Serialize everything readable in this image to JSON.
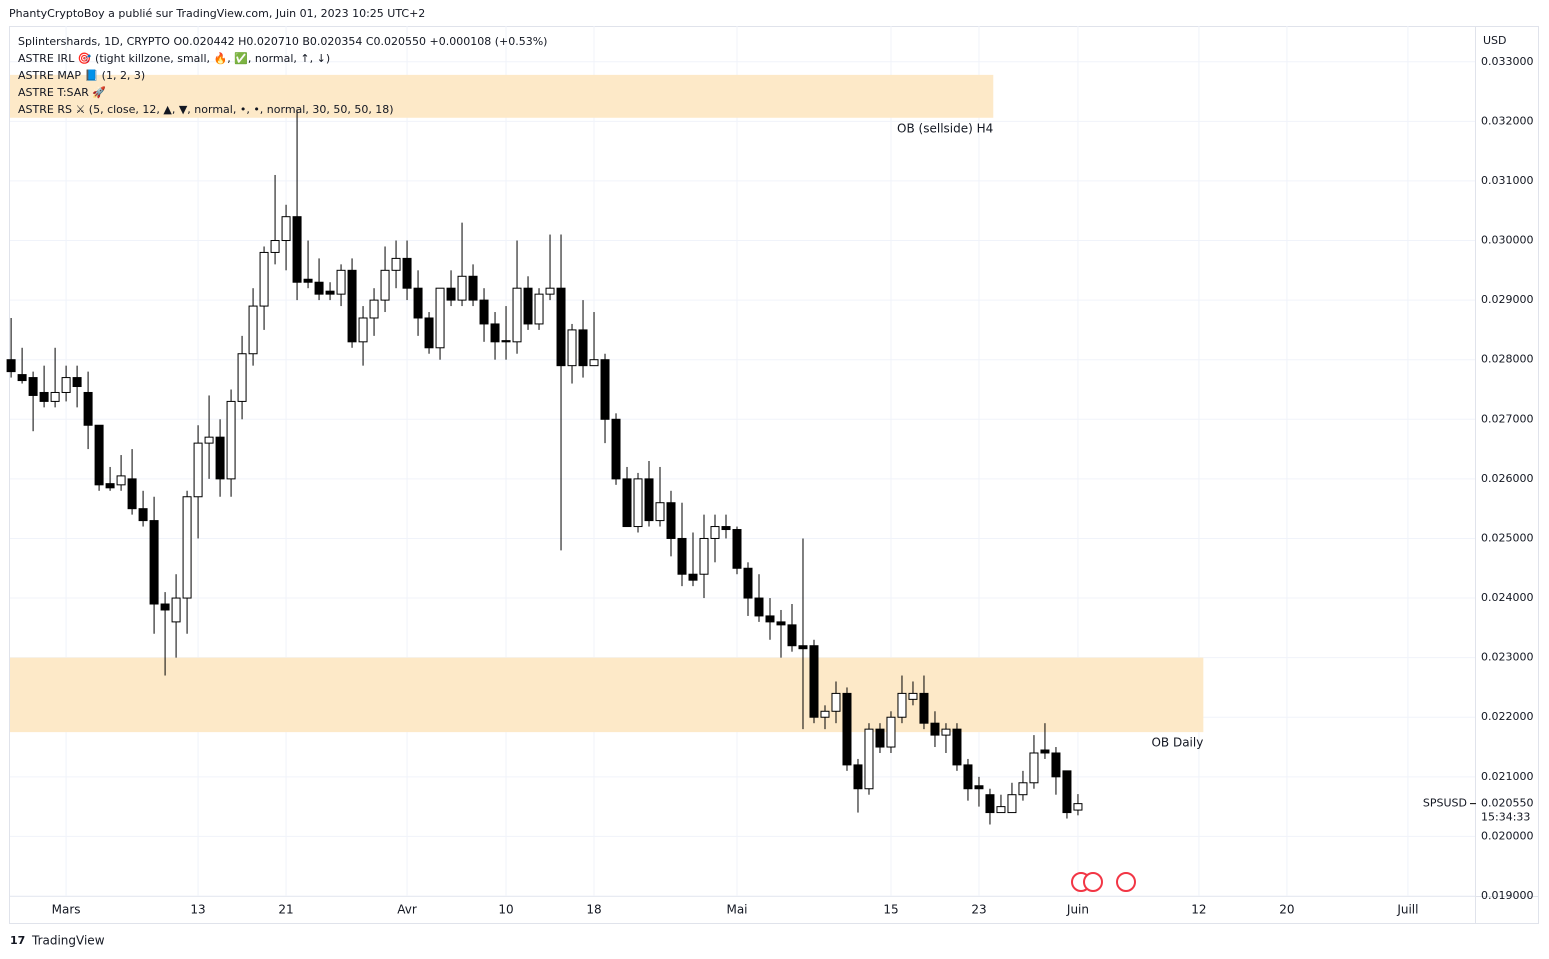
{
  "header": {
    "published": "PhantyCryptoBoy a publié sur TradingView.com, Juin 01, 2023 10:25 UTC+2",
    "legend": [
      "Splintershards, 1D, CRYPTO  O0.020442 H0.020710 B0.020354 C0.020550 +0.000108 (+0.53%)",
      "ASTRE IRL 🎯  (tight killzone, small, 🔥, ✅, normal, ↑, ↓)",
      "ASTRE MAP 📘  (1, 2, 3)",
      "ASTRE T:SAR 🚀",
      "ASTRE RS ⚔  (5, close, 12, ▲, ▼, normal, •, •, normal, 30, 50, 50, 18)"
    ]
  },
  "footer": "TradingView",
  "chart_data": {
    "type": "candlestick",
    "currency": "USD",
    "symbol": "SPSUSD",
    "countdown": "15:34:33",
    "last_price": {
      "value": 0.02055,
      "label": "0.020550"
    },
    "xlim": [
      -5.1,
      128.1
    ],
    "ylim": [
      0.019,
      0.0336
    ],
    "xticks": [
      {
        "value": 0,
        "label": "Mars"
      },
      {
        "value": 12,
        "label": "13"
      },
      {
        "value": 20,
        "label": "21"
      },
      {
        "value": 31,
        "label": "Avr"
      },
      {
        "value": 40,
        "label": "10"
      },
      {
        "value": 48,
        "label": "18"
      },
      {
        "value": 61,
        "label": "Mai"
      },
      {
        "value": 75,
        "label": "15"
      },
      {
        "value": 83,
        "label": "23"
      },
      {
        "value": 92,
        "label": "Juin"
      },
      {
        "value": 103,
        "label": "12"
      },
      {
        "value": 111,
        "label": "20"
      },
      {
        "value": 122,
        "label": "Juill"
      }
    ],
    "yticks": [
      {
        "value": 0.019,
        "label": "0.019000"
      },
      {
        "value": 0.02,
        "label": "0.020000"
      },
      {
        "value": 0.021,
        "label": "0.021000"
      },
      {
        "value": 0.022,
        "label": "0.022000"
      },
      {
        "value": 0.023,
        "label": "0.023000"
      },
      {
        "value": 0.024,
        "label": "0.024000"
      },
      {
        "value": 0.025,
        "label": "0.025000"
      },
      {
        "value": 0.026,
        "label": "0.026000"
      },
      {
        "value": 0.027,
        "label": "0.027000"
      },
      {
        "value": 0.028,
        "label": "0.028000"
      },
      {
        "value": 0.029,
        "label": "0.029000"
      },
      {
        "value": 0.03,
        "label": "0.030000"
      },
      {
        "value": 0.031,
        "label": "0.031000"
      },
      {
        "value": 0.032,
        "label": "0.032000"
      },
      {
        "value": 0.033,
        "label": "0.033000"
      }
    ],
    "grid": true,
    "up_color": "#ffffff",
    "down_color": "#000000",
    "zone_color": "#fde9c8",
    "zones": [
      {
        "label": "OB (sellside) H4",
        "top": 0.03278,
        "bottom": 0.03206,
        "x_end": 84.3
      },
      {
        "label": "OB Daily",
        "top": 0.023,
        "bottom": 0.02175,
        "x_end": 103.4
      }
    ],
    "candles": {
      "x": [
        -5,
        -4,
        -3,
        -2,
        -1,
        0,
        1,
        2,
        3,
        4,
        5,
        6,
        7,
        8,
        9,
        10,
        11,
        12,
        13,
        14,
        15,
        16,
        17,
        18,
        19,
        20,
        21,
        22,
        23,
        24,
        25,
        26,
        27,
        28,
        29,
        30,
        31,
        32,
        33,
        34,
        35,
        36,
        37,
        38,
        39,
        40,
        41,
        42,
        43,
        44,
        45,
        46,
        47,
        48,
        49,
        50,
        51,
        52,
        53,
        54,
        55,
        56,
        57,
        58,
        59,
        60,
        61,
        62,
        63,
        64,
        65,
        66,
        67,
        68,
        69,
        70,
        71,
        72,
        73,
        74,
        75,
        76,
        77,
        78,
        79,
        80,
        81,
        82,
        83,
        84,
        85,
        86,
        87,
        88,
        89,
        90,
        91,
        92
      ],
      "open": [
        0.028,
        0.02775,
        0.0277,
        0.02745,
        0.0273,
        0.02745,
        0.0277,
        0.02745,
        0.0269,
        0.02592,
        0.0259,
        0.026,
        0.0255,
        0.0253,
        0.0239,
        0.0236,
        0.024,
        0.0257,
        0.0266,
        0.0267,
        0.026,
        0.0273,
        0.0281,
        0.0289,
        0.0298,
        0.03,
        0.0304,
        0.02935,
        0.0293,
        0.02915,
        0.0291,
        0.0295,
        0.0283,
        0.0287,
        0.029,
        0.0295,
        0.0297,
        0.0292,
        0.0287,
        0.0282,
        0.0292,
        0.029,
        0.0294,
        0.029,
        0.0286,
        0.02832,
        0.0283,
        0.0292,
        0.0286,
        0.0291,
        0.0292,
        0.0279,
        0.0285,
        0.0279,
        0.028,
        0.027,
        0.026,
        0.0252,
        0.026,
        0.0253,
        0.0256,
        0.025,
        0.0244,
        0.0244,
        0.025,
        0.0252,
        0.02515,
        0.0245,
        0.024,
        0.0237,
        0.0236,
        0.02355,
        0.0232,
        0.0232,
        0.022,
        0.0221,
        0.0224,
        0.0212,
        0.0208,
        0.0218,
        0.0215,
        0.022,
        0.0223,
        0.0224,
        0.0219,
        0.0217,
        0.0218,
        0.0212,
        0.02085,
        0.0207,
        0.0204,
        0.0204,
        0.0207,
        0.0209,
        0.02145,
        0.0214,
        0.0211,
        0.020442
      ],
      "high": [
        0.0287,
        0.0282,
        0.0278,
        0.0279,
        0.0282,
        0.0279,
        0.0279,
        0.0278,
        0.0269,
        0.0262,
        0.0264,
        0.0265,
        0.0258,
        0.0257,
        0.0241,
        0.0244,
        0.0258,
        0.0269,
        0.0274,
        0.027,
        0.0275,
        0.0284,
        0.0292,
        0.0299,
        0.0311,
        0.0306,
        0.0322,
        0.03,
        0.0297,
        0.0293,
        0.0296,
        0.0297,
        0.0289,
        0.0292,
        0.0299,
        0.03,
        0.03,
        0.0295,
        0.0288,
        0.0292,
        0.0295,
        0.0303,
        0.0296,
        0.0292,
        0.0288,
        0.0289,
        0.03,
        0.0294,
        0.0292,
        0.0301,
        0.0301,
        0.0286,
        0.029,
        0.0288,
        0.0281,
        0.0271,
        0.0262,
        0.0261,
        0.0263,
        0.0262,
        0.0258,
        0.0256,
        0.0251,
        0.0254,
        0.0254,
        0.0254,
        0.0252,
        0.0246,
        0.0244,
        0.024,
        0.0238,
        0.0239,
        0.025,
        0.0233,
        0.0222,
        0.0226,
        0.0225,
        0.0213,
        0.0219,
        0.0219,
        0.0221,
        0.0227,
        0.0226,
        0.0227,
        0.0221,
        0.0219,
        0.0219,
        0.0213,
        0.021,
        0.0208,
        0.0207,
        0.0209,
        0.0211,
        0.0217,
        0.0219,
        0.0215,
        0.0211,
        0.02071
      ],
      "low": [
        0.0277,
        0.0276,
        0.0268,
        0.0272,
        0.0272,
        0.0273,
        0.0272,
        0.0265,
        0.0258,
        0.0258,
        0.0258,
        0.0254,
        0.0252,
        0.0234,
        0.0227,
        0.023,
        0.0234,
        0.025,
        0.026,
        0.0257,
        0.0257,
        0.027,
        0.0279,
        0.0285,
        0.0296,
        0.0295,
        0.029,
        0.0292,
        0.029,
        0.029,
        0.0289,
        0.0282,
        0.0279,
        0.0284,
        0.0288,
        0.0292,
        0.029,
        0.0284,
        0.0281,
        0.028,
        0.0289,
        0.0289,
        0.0289,
        0.0283,
        0.028,
        0.028,
        0.0281,
        0.0285,
        0.0285,
        0.029,
        0.0248,
        0.0276,
        0.0277,
        0.0279,
        0.0266,
        0.0259,
        0.0252,
        0.0251,
        0.0252,
        0.0252,
        0.0247,
        0.0242,
        0.0242,
        0.024,
        0.0246,
        0.025,
        0.0244,
        0.0237,
        0.0236,
        0.0233,
        0.023,
        0.0231,
        0.0218,
        0.0219,
        0.0218,
        0.0219,
        0.0211,
        0.0204,
        0.0207,
        0.0214,
        0.0214,
        0.0219,
        0.0222,
        0.0218,
        0.0215,
        0.0214,
        0.0211,
        0.0206,
        0.0205,
        0.0202,
        0.0204,
        0.0204,
        0.0206,
        0.0208,
        0.0213,
        0.0207,
        0.0203,
        0.020354
      ],
      "close": [
        0.0278,
        0.02765,
        0.0274,
        0.0273,
        0.02745,
        0.0277,
        0.02755,
        0.0269,
        0.0259,
        0.02585,
        0.02605,
        0.0255,
        0.0253,
        0.0239,
        0.0238,
        0.024,
        0.0257,
        0.0266,
        0.0267,
        0.026,
        0.0273,
        0.0281,
        0.0289,
        0.0298,
        0.03,
        0.0304,
        0.0293,
        0.0293,
        0.0291,
        0.0291,
        0.0295,
        0.0283,
        0.0287,
        0.029,
        0.0295,
        0.0297,
        0.0292,
        0.0287,
        0.0282,
        0.0292,
        0.029,
        0.0294,
        0.029,
        0.0286,
        0.0283,
        0.0283,
        0.0292,
        0.0286,
        0.0291,
        0.0292,
        0.0279,
        0.0285,
        0.0279,
        0.028,
        0.027,
        0.026,
        0.0252,
        0.026,
        0.0253,
        0.0256,
        0.025,
        0.0244,
        0.0243,
        0.025,
        0.0252,
        0.02515,
        0.0245,
        0.024,
        0.0237,
        0.0236,
        0.02355,
        0.0232,
        0.02315,
        0.022,
        0.0221,
        0.0224,
        0.0212,
        0.0208,
        0.0218,
        0.0215,
        0.022,
        0.0224,
        0.0224,
        0.0219,
        0.0217,
        0.0218,
        0.0212,
        0.0208,
        0.0208,
        0.0204,
        0.0205,
        0.0207,
        0.0209,
        0.0214,
        0.0214,
        0.021,
        0.0204,
        0.02055
      ]
    }
  }
}
